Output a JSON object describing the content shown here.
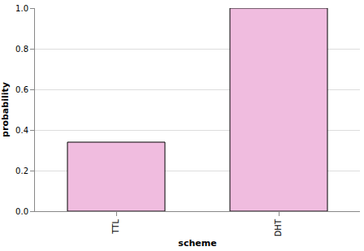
{
  "chart_data": {
    "type": "bar",
    "x_label": "scheme",
    "y_label": "probability",
    "categories": [
      "TTL",
      "DHT"
    ],
    "values": [
      0.34,
      1.0
    ],
    "color": "#f0bcdf",
    "ylim": [
      0,
      1
    ],
    "yticks": [
      {
        "value": 0,
        "label": "0.0"
      },
      0.2,
      0.4,
      0.6,
      0.8,
      {
        "value": 1,
        "label": "1.0"
      }
    ],
    "grid": true
  }
}
